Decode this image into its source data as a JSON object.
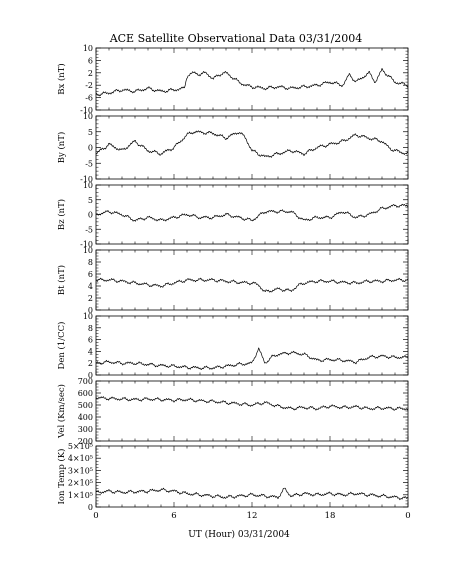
{
  "figure": {
    "title": "ACE Satellite Observational Data   03/31/2004",
    "xlabel": "UT (Hour)   03/31/2004",
    "x_tick_labels": [
      "0",
      "6",
      "12",
      "18",
      "0"
    ]
  },
  "chart_data": [
    {
      "type": "line",
      "ylabel": "Bx (nT)",
      "ylim": [
        -10,
        10
      ],
      "yticks": [
        -10,
        -6,
        -2,
        2,
        6,
        10
      ],
      "ytick_labels": [
        "-10",
        "-6",
        "-2",
        "2",
        "6",
        "10"
      ],
      "xlim": [
        0,
        24
      ],
      "grid": false,
      "series": [
        {
          "x": [
            0,
            1,
            2,
            3,
            4,
            5,
            6,
            6.8,
            7,
            7.5,
            8,
            8.5,
            9,
            9.5,
            10,
            10.5,
            11,
            11.5,
            12,
            13,
            14,
            15,
            16,
            17,
            18,
            19,
            19.5,
            20,
            20.5,
            21,
            21.5,
            22,
            22.5,
            23,
            24
          ],
          "y": [
            -5,
            -4.5,
            -3.5,
            -4,
            -3,
            -4,
            -3.5,
            -3,
            1,
            2,
            1.5,
            2,
            0,
            1.5,
            2,
            0.5,
            -1,
            -2,
            -2.5,
            -3,
            -2.5,
            -3,
            -2.5,
            -2,
            -1,
            -2,
            1.5,
            -1,
            0.5,
            2,
            -1,
            3,
            1,
            -1,
            -2
          ]
        }
      ]
    },
    {
      "type": "line",
      "ylabel": "By (nT)",
      "ylim": [
        -10,
        10
      ],
      "yticks": [
        -10,
        -5,
        0,
        5,
        10
      ],
      "ytick_labels": [
        "-10",
        "-5",
        "0",
        "5",
        "10"
      ],
      "xlim": [
        0,
        24
      ],
      "grid": false,
      "series": [
        {
          "x": [
            0,
            1,
            2,
            3,
            4,
            5,
            6,
            7,
            7.5,
            9,
            10,
            11,
            11.5,
            12,
            13,
            14,
            15,
            16,
            17,
            18,
            19,
            20,
            21,
            22,
            22.5,
            23,
            24
          ],
          "y": [
            -2,
            1,
            -1,
            2,
            -1,
            -2,
            0,
            4,
            5,
            4.5,
            3,
            5,
            3,
            -1,
            -3,
            -2,
            -1,
            -2,
            0,
            1,
            2,
            4,
            3,
            2,
            0,
            -1,
            -2
          ]
        }
      ]
    },
    {
      "type": "line",
      "ylabel": "Bz (nT)",
      "ylim": [
        -10,
        10
      ],
      "yticks": [
        -10,
        -5,
        0,
        5,
        10
      ],
      "ytick_labels": [
        "-10",
        "-5",
        "0",
        "5",
        "10"
      ],
      "xlim": [
        0,
        24
      ],
      "grid": false,
      "series": [
        {
          "x": [
            0,
            1,
            2,
            3,
            4,
            5,
            6,
            7,
            8,
            9,
            10,
            11,
            12,
            13,
            14,
            15,
            16,
            17,
            18,
            19,
            20,
            21,
            22,
            23,
            24
          ],
          "y": [
            0,
            1,
            0,
            -2,
            -1,
            -2,
            -1,
            0,
            -1,
            -1,
            0,
            -1,
            -2,
            1,
            1,
            1,
            -2,
            -1,
            -1,
            1,
            -1,
            0,
            2,
            3,
            3
          ]
        }
      ]
    },
    {
      "type": "line",
      "ylabel": "Bt (nT)",
      "ylim": [
        0,
        10
      ],
      "yticks": [
        0,
        2,
        4,
        6,
        8,
        10
      ],
      "ytick_labels": [
        "0",
        "2",
        "4",
        "6",
        "8",
        "10"
      ],
      "xlim": [
        0,
        24
      ],
      "grid": false,
      "series": [
        {
          "x": [
            0,
            1,
            2,
            3,
            4,
            5,
            6,
            7,
            8,
            9,
            10,
            11,
            12,
            12.5,
            13,
            14,
            15,
            15.5,
            16,
            17,
            18,
            19,
            20,
            21,
            22,
            23,
            24
          ],
          "y": [
            5,
            5,
            4.8,
            4.5,
            4.2,
            4,
            4.5,
            5,
            5,
            5,
            4.8,
            4.6,
            4.5,
            4.2,
            3,
            3.5,
            3.2,
            4,
            4.5,
            4.8,
            4.8,
            4.6,
            4.5,
            4.8,
            4.8,
            5,
            5
          ]
        }
      ]
    },
    {
      "type": "line",
      "ylabel": "Den (1/CC)",
      "ylim": [
        0,
        10
      ],
      "yticks": [
        0,
        2,
        4,
        6,
        8,
        10
      ],
      "ytick_labels": [
        "0",
        "2",
        "4",
        "6",
        "8",
        "10"
      ],
      "xlim": [
        0,
        24
      ],
      "grid": false,
      "series": [
        {
          "x": [
            0,
            1,
            2,
            3,
            4,
            5,
            6,
            7,
            8,
            9,
            10,
            11,
            12,
            12.5,
            13,
            13.5,
            14,
            15,
            16,
            17,
            18,
            19,
            20,
            21,
            22,
            23,
            24
          ],
          "y": [
            2,
            2.2,
            2,
            2,
            1.8,
            1.6,
            1.5,
            1.3,
            1.2,
            1.2,
            1.5,
            1.8,
            2,
            4.5,
            2,
            3,
            3.5,
            3.8,
            3.5,
            2.5,
            2.6,
            2.5,
            2.2,
            3,
            3.2,
            3,
            3
          ]
        }
      ]
    },
    {
      "type": "line",
      "ylabel": "Vel (Km/sec)",
      "ylim": [
        200,
        700
      ],
      "yticks": [
        200,
        300,
        400,
        500,
        600,
        700
      ],
      "ytick_labels": [
        "200",
        "300",
        "400",
        "500",
        "600",
        "700"
      ],
      "xlim": [
        0,
        24
      ],
      "grid": false,
      "series": [
        {
          "x": [
            0,
            1,
            2,
            3,
            4,
            5,
            6,
            7,
            8,
            9,
            10,
            11,
            12,
            13,
            14,
            15,
            16,
            17,
            18,
            19,
            20,
            21,
            22,
            23,
            24
          ],
          "y": [
            560,
            555,
            550,
            545,
            550,
            545,
            540,
            545,
            535,
            530,
            520,
            510,
            500,
            520,
            490,
            470,
            480,
            470,
            490,
            480,
            485,
            470,
            475,
            470,
            470
          ]
        }
      ]
    },
    {
      "type": "line",
      "ylabel": "Ion Temp (K)",
      "ylim": [
        0,
        500000
      ],
      "yticks": [
        0,
        100000,
        200000,
        300000,
        400000,
        500000
      ],
      "ytick_labels": [
        "0",
        "1×10⁵",
        "2×10⁵",
        "3×10⁵",
        "4×10⁵",
        "5×10⁵"
      ],
      "xlim": [
        0,
        24
      ],
      "grid": false,
      "series": [
        {
          "x": [
            0,
            1,
            2,
            3,
            4,
            5,
            6,
            7,
            8,
            9,
            10,
            11,
            12,
            13,
            14,
            14.5,
            15,
            16,
            17,
            18,
            19,
            20,
            21,
            22,
            23,
            24
          ],
          "y": [
            120000,
            130000,
            120000,
            125000,
            130000,
            140000,
            130000,
            110000,
            100000,
            90000,
            80000,
            90000,
            100000,
            90000,
            80000,
            150000,
            90000,
            110000,
            100000,
            110000,
            100000,
            110000,
            100000,
            90000,
            80000,
            70000
          ]
        }
      ]
    }
  ]
}
